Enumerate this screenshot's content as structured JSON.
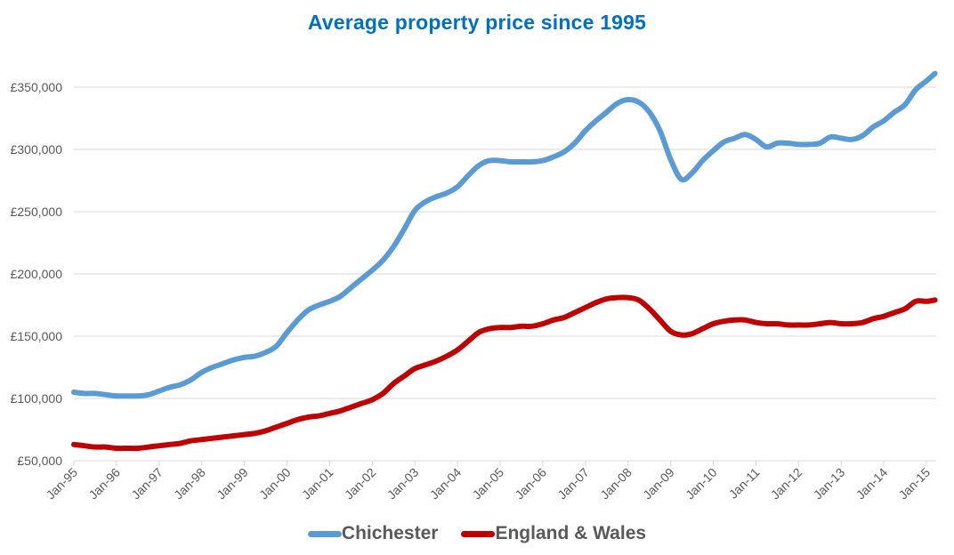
{
  "chart_data": {
    "type": "line",
    "title": "Average property price since 1995",
    "xlabel": "",
    "ylabel": "",
    "ylim": [
      50000,
      350000
    ],
    "yticks": [
      50000,
      100000,
      150000,
      200000,
      250000,
      300000,
      350000
    ],
    "ytick_labels": [
      "£50,000",
      "£100,000",
      "£150,000",
      "£200,000",
      "£250,000",
      "£300,000",
      "£350,000"
    ],
    "xlim": [
      1995.0,
      2015.25
    ],
    "xticks": [
      1995,
      1996,
      1997,
      1998,
      1999,
      2000,
      2001,
      2002,
      2003,
      2004,
      2005,
      2006,
      2007,
      2008,
      2009,
      2010,
      2011,
      2012,
      2013,
      2014,
      2015
    ],
    "xtick_labels": [
      "Jan-95",
      "Jan-96",
      "Jan-97",
      "Jan-98",
      "Jan-99",
      "Jan-00",
      "Jan-01",
      "Jan-02",
      "Jan-03",
      "Jan-04",
      "Jan-05",
      "Jan-06",
      "Jan-07",
      "Jan-08",
      "Jan-09",
      "Jan-10",
      "Jan-11",
      "Jan-12",
      "Jan-13",
      "Jan-14",
      "Jan-15"
    ],
    "grid": true,
    "legend_position": "bottom",
    "x": [
      1995.0,
      1995.25,
      1995.5,
      1995.75,
      1996.0,
      1996.25,
      1996.5,
      1996.75,
      1997.0,
      1997.25,
      1997.5,
      1997.75,
      1998.0,
      1998.25,
      1998.5,
      1998.75,
      1999.0,
      1999.25,
      1999.5,
      1999.75,
      2000.0,
      2000.25,
      2000.5,
      2000.75,
      2001.0,
      2001.25,
      2001.5,
      2001.75,
      2002.0,
      2002.25,
      2002.5,
      2002.75,
      2003.0,
      2003.25,
      2003.5,
      2003.75,
      2004.0,
      2004.25,
      2004.5,
      2004.75,
      2005.0,
      2005.25,
      2005.5,
      2005.75,
      2006.0,
      2006.25,
      2006.5,
      2006.75,
      2007.0,
      2007.25,
      2007.5,
      2007.75,
      2008.0,
      2008.25,
      2008.5,
      2008.75,
      2009.0,
      2009.25,
      2009.5,
      2009.75,
      2010.0,
      2010.25,
      2010.5,
      2010.75,
      2011.0,
      2011.25,
      2011.5,
      2011.75,
      2012.0,
      2012.25,
      2012.5,
      2012.75,
      2013.0,
      2013.25,
      2013.5,
      2013.75,
      2014.0,
      2014.25,
      2014.5,
      2014.75,
      2015.0,
      2015.2
    ],
    "series": [
      {
        "name": "Chichester",
        "color": "#5b9bd5",
        "values": [
          105000,
          104000,
          104000,
          103000,
          102000,
          102000,
          102000,
          103000,
          106000,
          109000,
          111000,
          115000,
          121000,
          125000,
          128000,
          131000,
          133000,
          134000,
          137000,
          142000,
          153000,
          163000,
          171000,
          175000,
          178000,
          182000,
          189000,
          196000,
          203000,
          211000,
          222000,
          236000,
          251000,
          258000,
          262000,
          265000,
          270000,
          279000,
          287000,
          291000,
          291000,
          290000,
          290000,
          290000,
          291000,
          294000,
          298000,
          305000,
          315000,
          323000,
          330000,
          337000,
          340000,
          338000,
          330000,
          315000,
          292000,
          276000,
          281000,
          291000,
          299000,
          306000,
          309000,
          312000,
          308000,
          302000,
          305000,
          305000,
          304000,
          304000,
          305000,
          310000,
          309000,
          308000,
          311000,
          318000,
          323000,
          330000,
          336000,
          348000,
          355000,
          361000
        ]
      },
      {
        "name": "England & Wales",
        "color": "#c00000",
        "values": [
          63000,
          62000,
          61000,
          61000,
          60000,
          60000,
          60000,
          61000,
          62000,
          63000,
          64000,
          66000,
          67000,
          68000,
          69000,
          70000,
          71000,
          72000,
          74000,
          77000,
          80000,
          83000,
          85000,
          86000,
          88000,
          90000,
          93000,
          96000,
          99000,
          104000,
          112000,
          118000,
          124000,
          127000,
          130000,
          134000,
          139000,
          146000,
          153000,
          156000,
          157000,
          157000,
          158000,
          158000,
          160000,
          163000,
          165000,
          169000,
          173000,
          177000,
          180000,
          181000,
          181000,
          179000,
          172000,
          163000,
          154000,
          151000,
          152000,
          156000,
          160000,
          162000,
          163000,
          163000,
          161000,
          160000,
          160000,
          159000,
          159000,
          159000,
          160000,
          161000,
          160000,
          160000,
          161000,
          164000,
          166000,
          169000,
          172000,
          178000,
          178000,
          179000
        ]
      }
    ]
  },
  "legend": {
    "items": [
      {
        "label": "Chichester",
        "color": "#5b9bd5"
      },
      {
        "label": "England & Wales",
        "color": "#c00000"
      }
    ]
  }
}
